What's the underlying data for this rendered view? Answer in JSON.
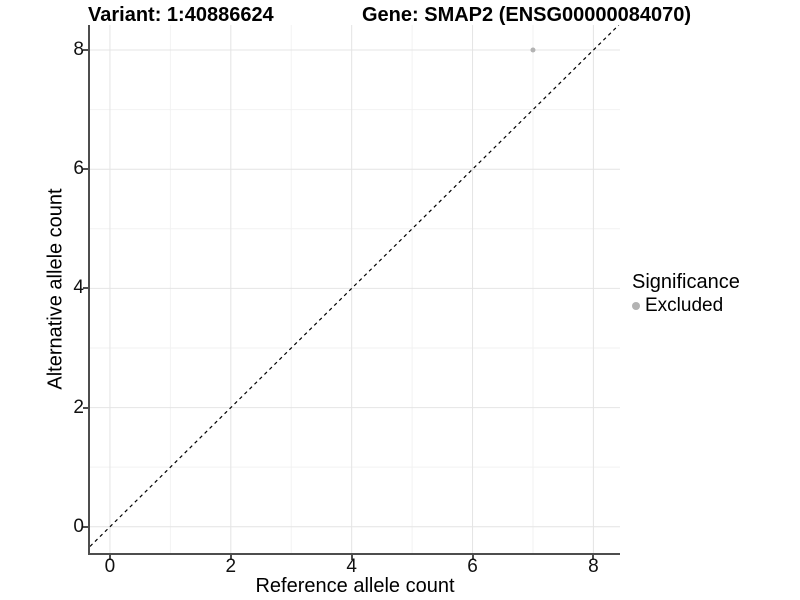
{
  "header": {
    "variant_title": "Variant: 1:40886624",
    "gene_title": "Gene: SMAP2 (ENSG00000084070)"
  },
  "legend": {
    "title": "Significance",
    "items": [
      {
        "label": "Excluded",
        "color": "#b3b3b3"
      }
    ]
  },
  "colors": {
    "grid_major": "#e4e4e4",
    "grid_minor": "#f2f2f2",
    "axis_line": "#4d4d4d",
    "reference_line": "#000000",
    "excluded_point": "#b3b3b3",
    "background": "#ffffff"
  },
  "chart_data": {
    "type": "scatter",
    "title": "Variant: 1:40886624   Gene: SMAP2 (ENSG00000084070)",
    "xlabel": "Reference allele count",
    "ylabel": "Alternative allele count",
    "x_ticks": [
      0,
      2,
      4,
      6,
      8
    ],
    "y_ticks": [
      0,
      2,
      4,
      6,
      8
    ],
    "x_minor_ticks": [
      1,
      3,
      5,
      7
    ],
    "y_minor_ticks": [
      1,
      3,
      5,
      7
    ],
    "xlim": [
      -0.33,
      8.44
    ],
    "ylim": [
      -0.44,
      8.42
    ],
    "grid": true,
    "legend_position": "right",
    "legend_title": "Significance",
    "series": [
      {
        "name": "Excluded",
        "color": "#b3b3b3",
        "point_radius": 2.5,
        "points": [
          {
            "x": 7,
            "y": 8
          }
        ]
      }
    ],
    "reference_line": {
      "type": "identity y=x",
      "style": "dashed",
      "color": "#000000"
    }
  }
}
